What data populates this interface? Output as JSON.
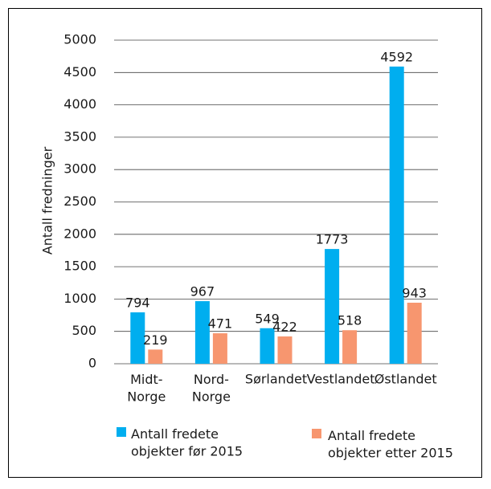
{
  "chart_data": {
    "type": "bar",
    "y_label": "Antall fredninger",
    "categories": [
      "Midt-\nNorge",
      "Nord-\nNorge",
      "Sørlandet",
      "Vestlandet",
      "Østlandet"
    ],
    "series": [
      {
        "name": "Antall fredete\nobjekter før 2015",
        "color": "#00aeef",
        "values": [
          794,
          967,
          549,
          1773,
          4592
        ]
      },
      {
        "name": "Antall fredete\nobjekter etter 2015",
        "color": "#f7966f",
        "values": [
          219,
          471,
          422,
          518,
          943
        ]
      }
    ],
    "ylim": [
      0,
      5000
    ],
    "yticks": [
      0,
      500,
      1000,
      1500,
      2000,
      2500,
      3000,
      3500,
      4000,
      4500,
      5000
    ],
    "grid": true,
    "legend": "bottom"
  }
}
